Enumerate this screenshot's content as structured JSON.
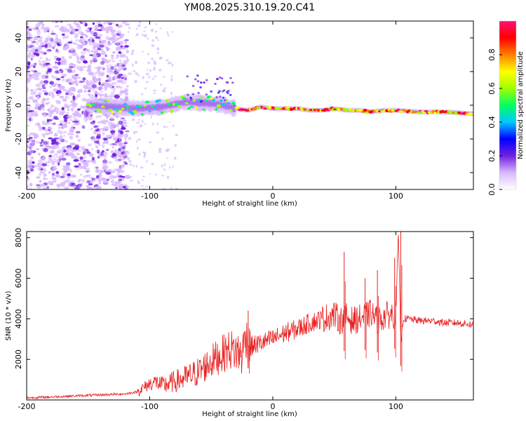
{
  "chart_data": [
    {
      "type": "heatmap",
      "title": "YM08.2025.310.19.20.C41",
      "xlabel": "Height of straight line (km)",
      "ylabel": "Frequency (Hz)",
      "xlim": [
        -200,
        163
      ],
      "ylim": [
        -50,
        50
      ],
      "xticks": [
        -200,
        -100,
        0,
        100
      ],
      "yticks": [
        -40,
        -20,
        0,
        20,
        40
      ],
      "colorbar": {
        "label": "Normalized spectral amplitude",
        "range": [
          0,
          1
        ],
        "ticks": [
          0.0,
          0.2,
          0.4,
          0.6,
          0.8
        ],
        "colors": [
          "#ffffff",
          "#d8b8ff",
          "#7020e0",
          "#0000ff",
          "#00c8ff",
          "#00ff60",
          "#a0ff00",
          "#ffff00",
          "#ff8000",
          "#ff0000",
          "#ff1070"
        ]
      },
      "trace": {
        "x": [
          -150,
          -130,
          -110,
          -90,
          -70,
          -50,
          -40,
          -30,
          -20,
          -10,
          0,
          10,
          20,
          30,
          40,
          50,
          60,
          70,
          80,
          90,
          100,
          120,
          140,
          163
        ],
        "frequency": [
          0,
          -1,
          -2,
          -1,
          2,
          1,
          0,
          -2,
          -3,
          -1,
          -2,
          -2,
          -2,
          -3,
          -3,
          -2,
          -3,
          -3,
          -4,
          -3,
          -3,
          -4,
          -4,
          -5
        ]
      }
    },
    {
      "type": "line",
      "title": "",
      "xlabel": "Height of straight line (km)",
      "ylabel": "SNR (10 * v/v)",
      "xlim": [
        -200,
        163
      ],
      "ylim": [
        0,
        8300
      ],
      "xticks": [
        -200,
        -100,
        0,
        100
      ],
      "yticks": [
        2000,
        4000,
        6000,
        8000
      ],
      "series": [
        {
          "name": "SNR",
          "color": "#e82020",
          "x": [
            -200,
            -180,
            -160,
            -140,
            -120,
            -110,
            -100,
            -95,
            -90,
            -80,
            -70,
            -60,
            -50,
            -40,
            -35,
            -30,
            -25,
            -22,
            -20,
            -15,
            -10,
            0,
            10,
            20,
            30,
            40,
            50,
            55,
            60,
            65,
            70,
            75,
            80,
            85,
            90,
            95,
            100,
            102,
            104,
            106,
            110,
            120,
            130,
            140,
            150,
            163
          ],
          "y": [
            100,
            150,
            200,
            250,
            300,
            400,
            800,
            900,
            700,
            900,
            1100,
            1400,
            1900,
            2300,
            2500,
            2400,
            2200,
            3300,
            2600,
            2700,
            2800,
            3000,
            3300,
            3500,
            3800,
            4000,
            4200,
            3900,
            4100,
            3900,
            4000,
            4100,
            4300,
            3900,
            4100,
            4200,
            4200,
            8300,
            2800,
            4000,
            4000,
            3900,
            3900,
            3800,
            3800,
            3700
          ]
        }
      ],
      "spikes": [
        {
          "x": -20,
          "y": 4400
        },
        {
          "x": 58,
          "y": 7300
        },
        {
          "x": 75,
          "y": 6000
        },
        {
          "x": 85,
          "y": 6400
        },
        {
          "x": 99,
          "y": 7000
        },
        {
          "x": 104,
          "y": 8300
        }
      ]
    }
  ]
}
